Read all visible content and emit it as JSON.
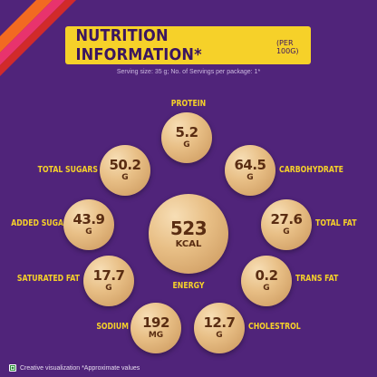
{
  "header": {
    "title": "NUTRITION INFORMATION*",
    "title_suffix": "(PER 100G)"
  },
  "serving_text": "Serving size: 35 g; No. of Servings per package: 1*",
  "nutrients": {
    "protein": {
      "label": "PROTEIN",
      "value": "5.2",
      "unit": "G"
    },
    "carbohydrate": {
      "label": "CARBOHYDRATE",
      "value": "64.5",
      "unit": "G"
    },
    "total_fat": {
      "label": "TOTAL FAT",
      "value": "27.6",
      "unit": "G"
    },
    "trans_fat": {
      "label": "TRANS FAT",
      "value": "0.2",
      "unit": "G"
    },
    "cholestrol": {
      "label": "CHOLESTROL",
      "value": "12.7",
      "unit": "G"
    },
    "sodium": {
      "label": "SODIUM",
      "value": "192",
      "unit": "MG"
    },
    "saturated_fat": {
      "label": "SATURATED FAT",
      "value": "17.7",
      "unit": "G"
    },
    "added_sugars": {
      "label": "ADDED SUGARS",
      "value": "43.9",
      "unit": "G"
    },
    "total_sugars": {
      "label": "TOTAL SUGARS",
      "value": "50.2",
      "unit": "G"
    },
    "energy": {
      "label": "ENERGY",
      "value": "523",
      "unit": "KCAL"
    }
  },
  "footer": {
    "text": "Creative visualization *Approximate values",
    "icon": "veg-mark-icon"
  },
  "colors": {
    "background": "#50247a",
    "accent_yellow": "#f6d129",
    "title_text": "#3a1560",
    "stripe_orange": "#f26a21",
    "stripe_pink": "#e8336d",
    "stripe_red": "#d12a2a"
  }
}
